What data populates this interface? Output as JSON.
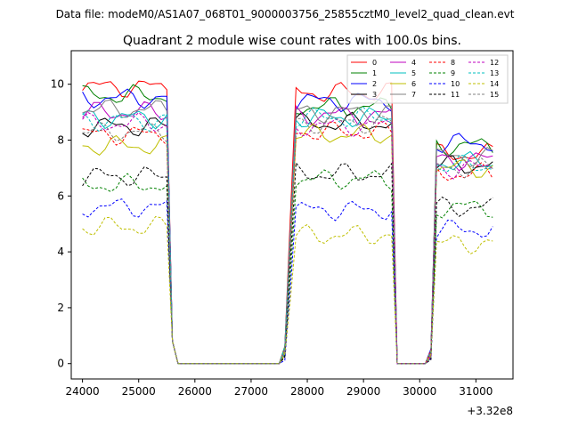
{
  "figure": {
    "suptitle": "Data file: modeM0/AS1A07_068T01_9000003756_25855cztM0_level2_quad_clean.evt",
    "title": "Quadrant 2 module wise count rates with 100.0s bins.",
    "x_offset_label": "+3.32e8"
  },
  "chart_data": {
    "type": "line",
    "title": "Quadrant 2 module wise count rates with 100.0s bins.",
    "xlabel": "",
    "ylabel": "",
    "x_offset": "+3.32e8",
    "xlim": [
      23800,
      31660
    ],
    "ylim": [
      -0.55,
      11.2
    ],
    "xticks": [
      24000,
      25000,
      26000,
      27000,
      28000,
      29000,
      30000,
      31000
    ],
    "yticks": [
      0,
      2,
      4,
      6,
      8,
      10
    ],
    "legend_position": "top-right",
    "gaps": [
      [
        25700,
        27500
      ],
      [
        29600,
        30100
      ]
    ],
    "segments": [
      {
        "t0": 24000,
        "t1": 25500,
        "rise_end": 24000,
        "fall_start": 25500
      },
      {
        "t0": 27600,
        "t1": 29500,
        "rise_end": 27800,
        "fall_start": 29500
      },
      {
        "t0": 30200,
        "t1": 31300,
        "rise_end": 30300,
        "fall_start": 31300
      }
    ],
    "series": [
      {
        "name": "0",
        "color": "#ff0000",
        "dash": false,
        "levels": [
          9.9,
          9.7,
          7.5
        ]
      },
      {
        "name": "1",
        "color": "#008000",
        "dash": false,
        "levels": [
          9.6,
          9.2,
          7.8
        ]
      },
      {
        "name": "2",
        "color": "#0000ff",
        "dash": false,
        "levels": [
          9.5,
          9.4,
          7.9
        ]
      },
      {
        "name": "3",
        "color": "#000000",
        "dash": false,
        "levels": [
          8.5,
          8.6,
          7.1
        ]
      },
      {
        "name": "4",
        "color": "#bf00bf",
        "dash": false,
        "levels": [
          9.0,
          8.9,
          7.3
        ]
      },
      {
        "name": "5",
        "color": "#00bfbf",
        "dash": false,
        "levels": [
          8.8,
          8.8,
          7.2
        ]
      },
      {
        "name": "6",
        "color": "#bfbf00",
        "dash": false,
        "levels": [
          7.8,
          8.2,
          7.0
        ]
      },
      {
        "name": "7",
        "color": "#808080",
        "dash": false,
        "levels": [
          9.1,
          9.0,
          7.4
        ]
      },
      {
        "name": "8",
        "color": "#ff0000",
        "dash": true,
        "levels": [
          8.2,
          8.3,
          6.8
        ]
      },
      {
        "name": "9",
        "color": "#008000",
        "dash": true,
        "levels": [
          6.4,
          6.6,
          5.6
        ]
      },
      {
        "name": "10",
        "color": "#0000ff",
        "dash": true,
        "levels": [
          5.6,
          5.5,
          4.8
        ]
      },
      {
        "name": "11",
        "color": "#000000",
        "dash": true,
        "levels": [
          6.7,
          6.8,
          5.6
        ]
      },
      {
        "name": "12",
        "color": "#bf00bf",
        "dash": true,
        "levels": [
          8.6,
          8.5,
          7.0
        ]
      },
      {
        "name": "13",
        "color": "#00bfbf",
        "dash": true,
        "levels": [
          8.7,
          8.8,
          7.1
        ]
      },
      {
        "name": "14",
        "color": "#bfbf00",
        "dash": true,
        "levels": [
          4.9,
          4.6,
          4.3
        ]
      },
      {
        "name": "15",
        "color": "#808080",
        "dash": true,
        "levels": [
          8.3,
          8.6,
          7.0
        ]
      }
    ]
  }
}
